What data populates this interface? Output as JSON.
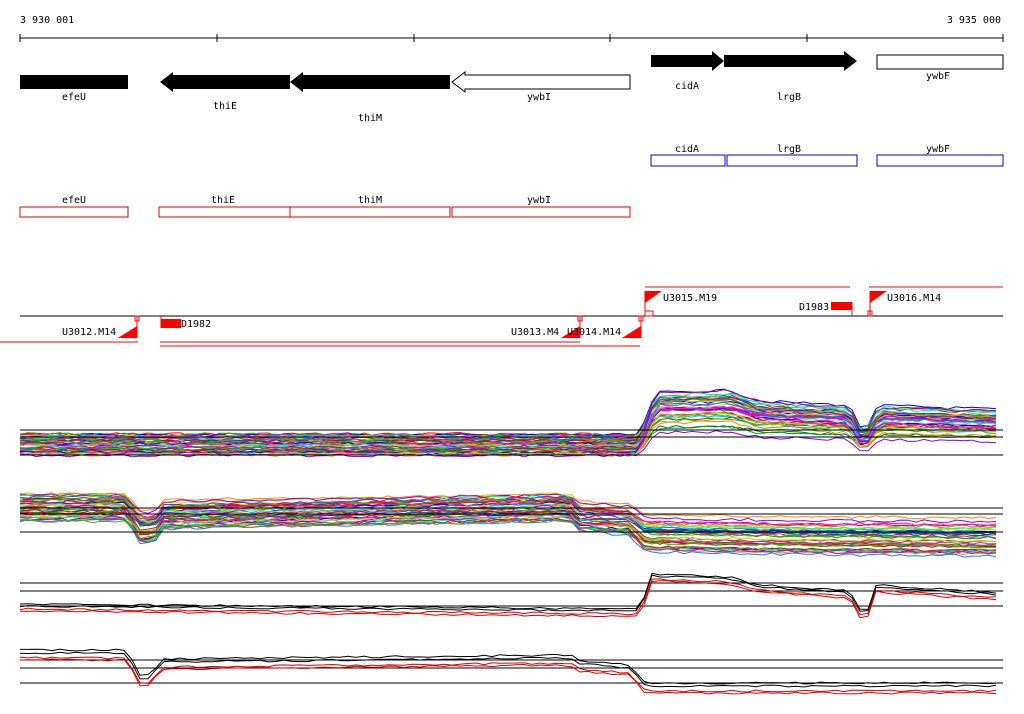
{
  "coordinates": {
    "start": "3 930 001",
    "end": "3 935 000"
  },
  "genes": [
    {
      "name": "efeU",
      "strand": "+",
      "filled": true
    },
    {
      "name": "thiE",
      "strand": "-",
      "filled": true
    },
    {
      "name": "thiM",
      "strand": "-",
      "filled": true
    },
    {
      "name": "ywbI",
      "strand": "-",
      "filled": false
    },
    {
      "name": "cidA",
      "strand": "+",
      "filled": true
    },
    {
      "name": "lrgB",
      "strand": "+",
      "filled": true
    },
    {
      "name": "ywbF",
      "strand": "+",
      "filled": false
    }
  ],
  "blue_track": [
    "cidA",
    "lrgB",
    "ywbF"
  ],
  "red_track": [
    "efeU",
    "thiE",
    "thiM",
    "ywbI"
  ],
  "transcription_units": {
    "reverse": [
      "U3012.M14",
      "U3013.M4",
      "U3014.M14"
    ],
    "forward": [
      "U3015.M19",
      "U3016.M14"
    ]
  },
  "downshifts": [
    "D1982",
    "D1983"
  ],
  "colors": {
    "gene": "#000000",
    "blue_track": "#0000cc",
    "red_track": "#dd0000",
    "feature": "#ff0000"
  }
}
